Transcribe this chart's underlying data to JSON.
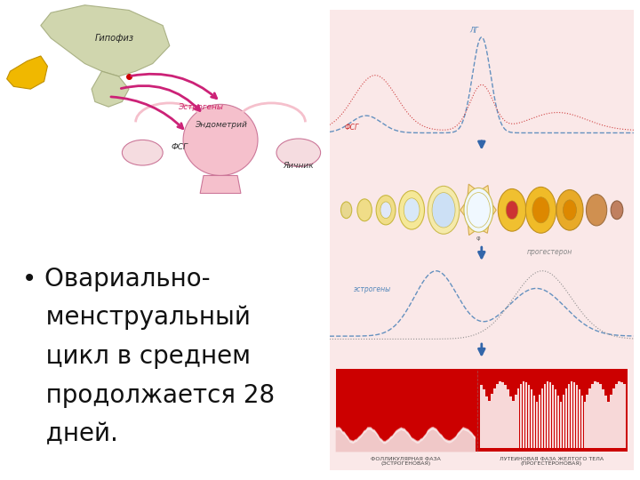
{
  "bg_color": "#ffffff",
  "left_panel_text": "• Овариально-\n   менструальный\n   цикл в среднем\n   продолжается 28\n   дней.",
  "text_fontsize": 20,
  "right_bg": "#fae8e8",
  "arrow_color": "#3366aa",
  "fsh_color": "#cc3333",
  "lh_color": "#5588bb",
  "estrogen_color": "#5588bb",
  "progesterone_color": "#aaaaaa",
  "fsh_label": "ФСГ",
  "lh_label": "ЛГ",
  "estrogen_label": "эстрогены",
  "progesterone_label": "прогестерон",
  "phase1_label": "ФОЛЛИКУЛЯРНАЯ ФАЗА\n(ЭСТРОГЕНОВАЯ)",
  "phase2_label": "ЛУТЕИНОВАЯ ФАЗА ЖЕЛТОГО ТЕЛА\n(ПРОГЕСТЕРОНОВАЯ)"
}
